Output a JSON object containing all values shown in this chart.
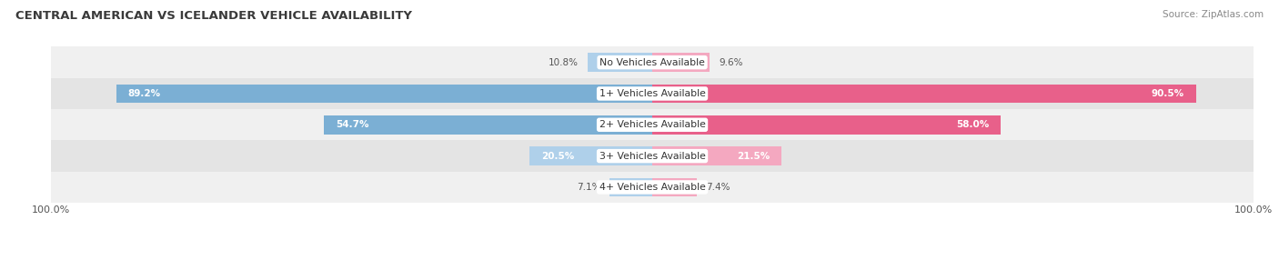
{
  "title": "CENTRAL AMERICAN VS ICELANDER VEHICLE AVAILABILITY",
  "source": "Source: ZipAtlas.com",
  "categories": [
    "No Vehicles Available",
    "1+ Vehicles Available",
    "2+ Vehicles Available",
    "3+ Vehicles Available",
    "4+ Vehicles Available"
  ],
  "central_american": [
    10.8,
    89.2,
    54.7,
    20.5,
    7.1
  ],
  "icelander": [
    9.6,
    90.5,
    58.0,
    21.5,
    7.4
  ],
  "max_value": 100.0,
  "bar_height": 0.6,
  "blue_color_dark": "#7bafd4",
  "blue_color_light": "#afd0ea",
  "pink_color_dark": "#e8608a",
  "pink_color_light": "#f4a8c0",
  "fig_bg": "#ffffff",
  "row_bg_light": "#f0f0f0",
  "row_bg_dark": "#e4e4e4",
  "title_color": "#3a3a3a",
  "source_color": "#888888",
  "label_dark": "#555555"
}
